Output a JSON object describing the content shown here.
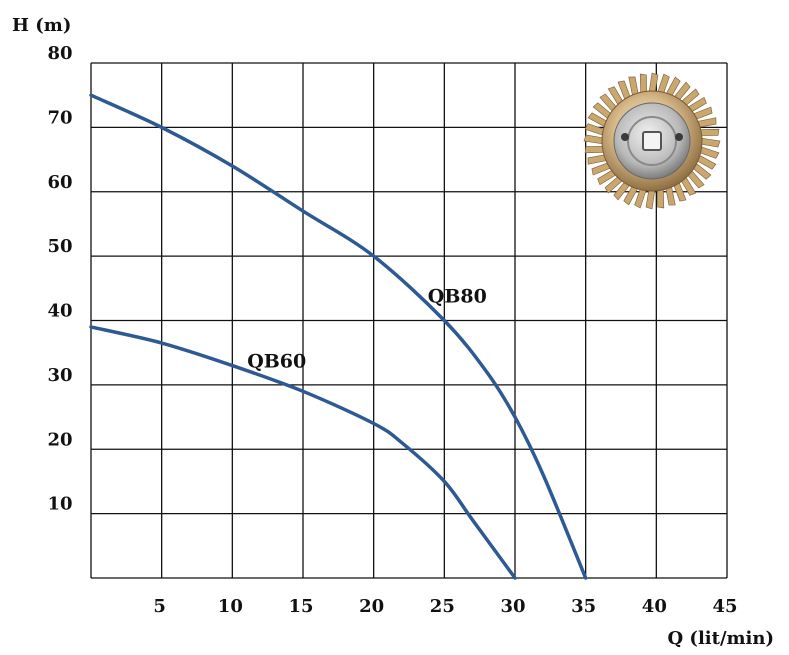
{
  "chart_data": {
    "type": "line",
    "ylabel": "H (m)",
    "xlabel": "Q (lit/min)",
    "xlim": [
      0,
      45
    ],
    "ylim": [
      0,
      80
    ],
    "x_ticks": [
      5,
      10,
      15,
      20,
      25,
      30,
      35,
      40,
      45
    ],
    "y_ticks": [
      10,
      20,
      30,
      40,
      50,
      60,
      70,
      80
    ],
    "grid": true,
    "series": [
      {
        "name": "QB80",
        "x": [
          0,
          5,
          10,
          15,
          20,
          25,
          28,
          30,
          32,
          35
        ],
        "y": [
          75,
          70,
          64,
          57,
          50,
          40,
          32,
          25,
          16,
          0
        ]
      },
      {
        "name": "QB60",
        "x": [
          0,
          5,
          10,
          15,
          20,
          22,
          25,
          27,
          30
        ],
        "y": [
          39,
          36.5,
          33,
          29,
          24,
          21,
          15,
          9,
          0
        ]
      }
    ],
    "colors": {
      "series": "#2e5a94",
      "grid": "#111111"
    }
  },
  "decoration": {
    "impeller_icon": "impeller-icon"
  }
}
